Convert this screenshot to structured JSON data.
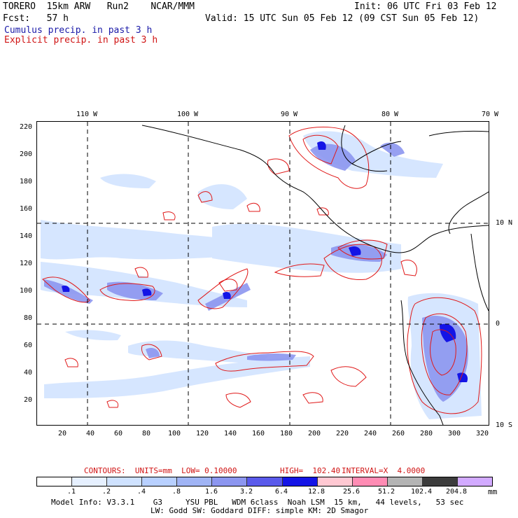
{
  "header": {
    "model": "TORERO  15km ARW   Run2    NCAR/MMM",
    "init": "Init: 06 UTC Fri 03 Feb 12",
    "fcst": "Fcst:   57 h",
    "valid": "Valid: 15 UTC Sun 05 Feb 12 (09 CST Sun 05 Feb 12)",
    "legend_cumulus": "Cumulus precip. in past 3 h",
    "legend_explicit": "Explicit precip. in past 3 h"
  },
  "axes": {
    "x_ticks": [
      "20",
      "40",
      "60",
      "80",
      "100",
      "120",
      "140",
      "160",
      "180",
      "200",
      "220",
      "240",
      "260",
      "280",
      "300",
      "320"
    ],
    "y_ticks": [
      "20",
      "40",
      "60",
      "80",
      "100",
      "120",
      "140",
      "160",
      "180",
      "200",
      "220"
    ],
    "lon_labels": [
      "110 W",
      "100 W",
      "90 W",
      "80 W",
      "70 W"
    ],
    "lat_labels": [
      "10 N",
      "0",
      "10 S"
    ]
  },
  "contour_info": {
    "units": "CONTOURS:  UNITS=mm  LOW= 0.10000",
    "high": "HIGH=  102.40",
    "interval": "INTERVAL=X  4.0000"
  },
  "colorbar": {
    "labels": [
      ".1",
      ".2",
      ".4",
      ".8",
      "1.6",
      "3.2",
      "6.4",
      "12.8",
      "25.6",
      "51.2",
      "102.4",
      "204.8"
    ],
    "unit": "mm",
    "colors": [
      "#ffffff",
      "#e6f0ff",
      "#cfe2ff",
      "#b8d0ff",
      "#a0b4f5",
      "#8c96f0",
      "#5a5aeb",
      "#1414e6",
      "#ffc8d2",
      "#ff8cb4",
      "#b4b4b4",
      "#3c3c3c",
      "#d2aaff"
    ]
  },
  "footer": {
    "line1": "Model Info: V3.3.1    G3     YSU PBL   WDM 6class  Noah LSM  15 km,   44 levels,   53 sec",
    "line2": "LW: Godd SW: Goddard DIFF: simple KM: 2D Smagor"
  }
}
